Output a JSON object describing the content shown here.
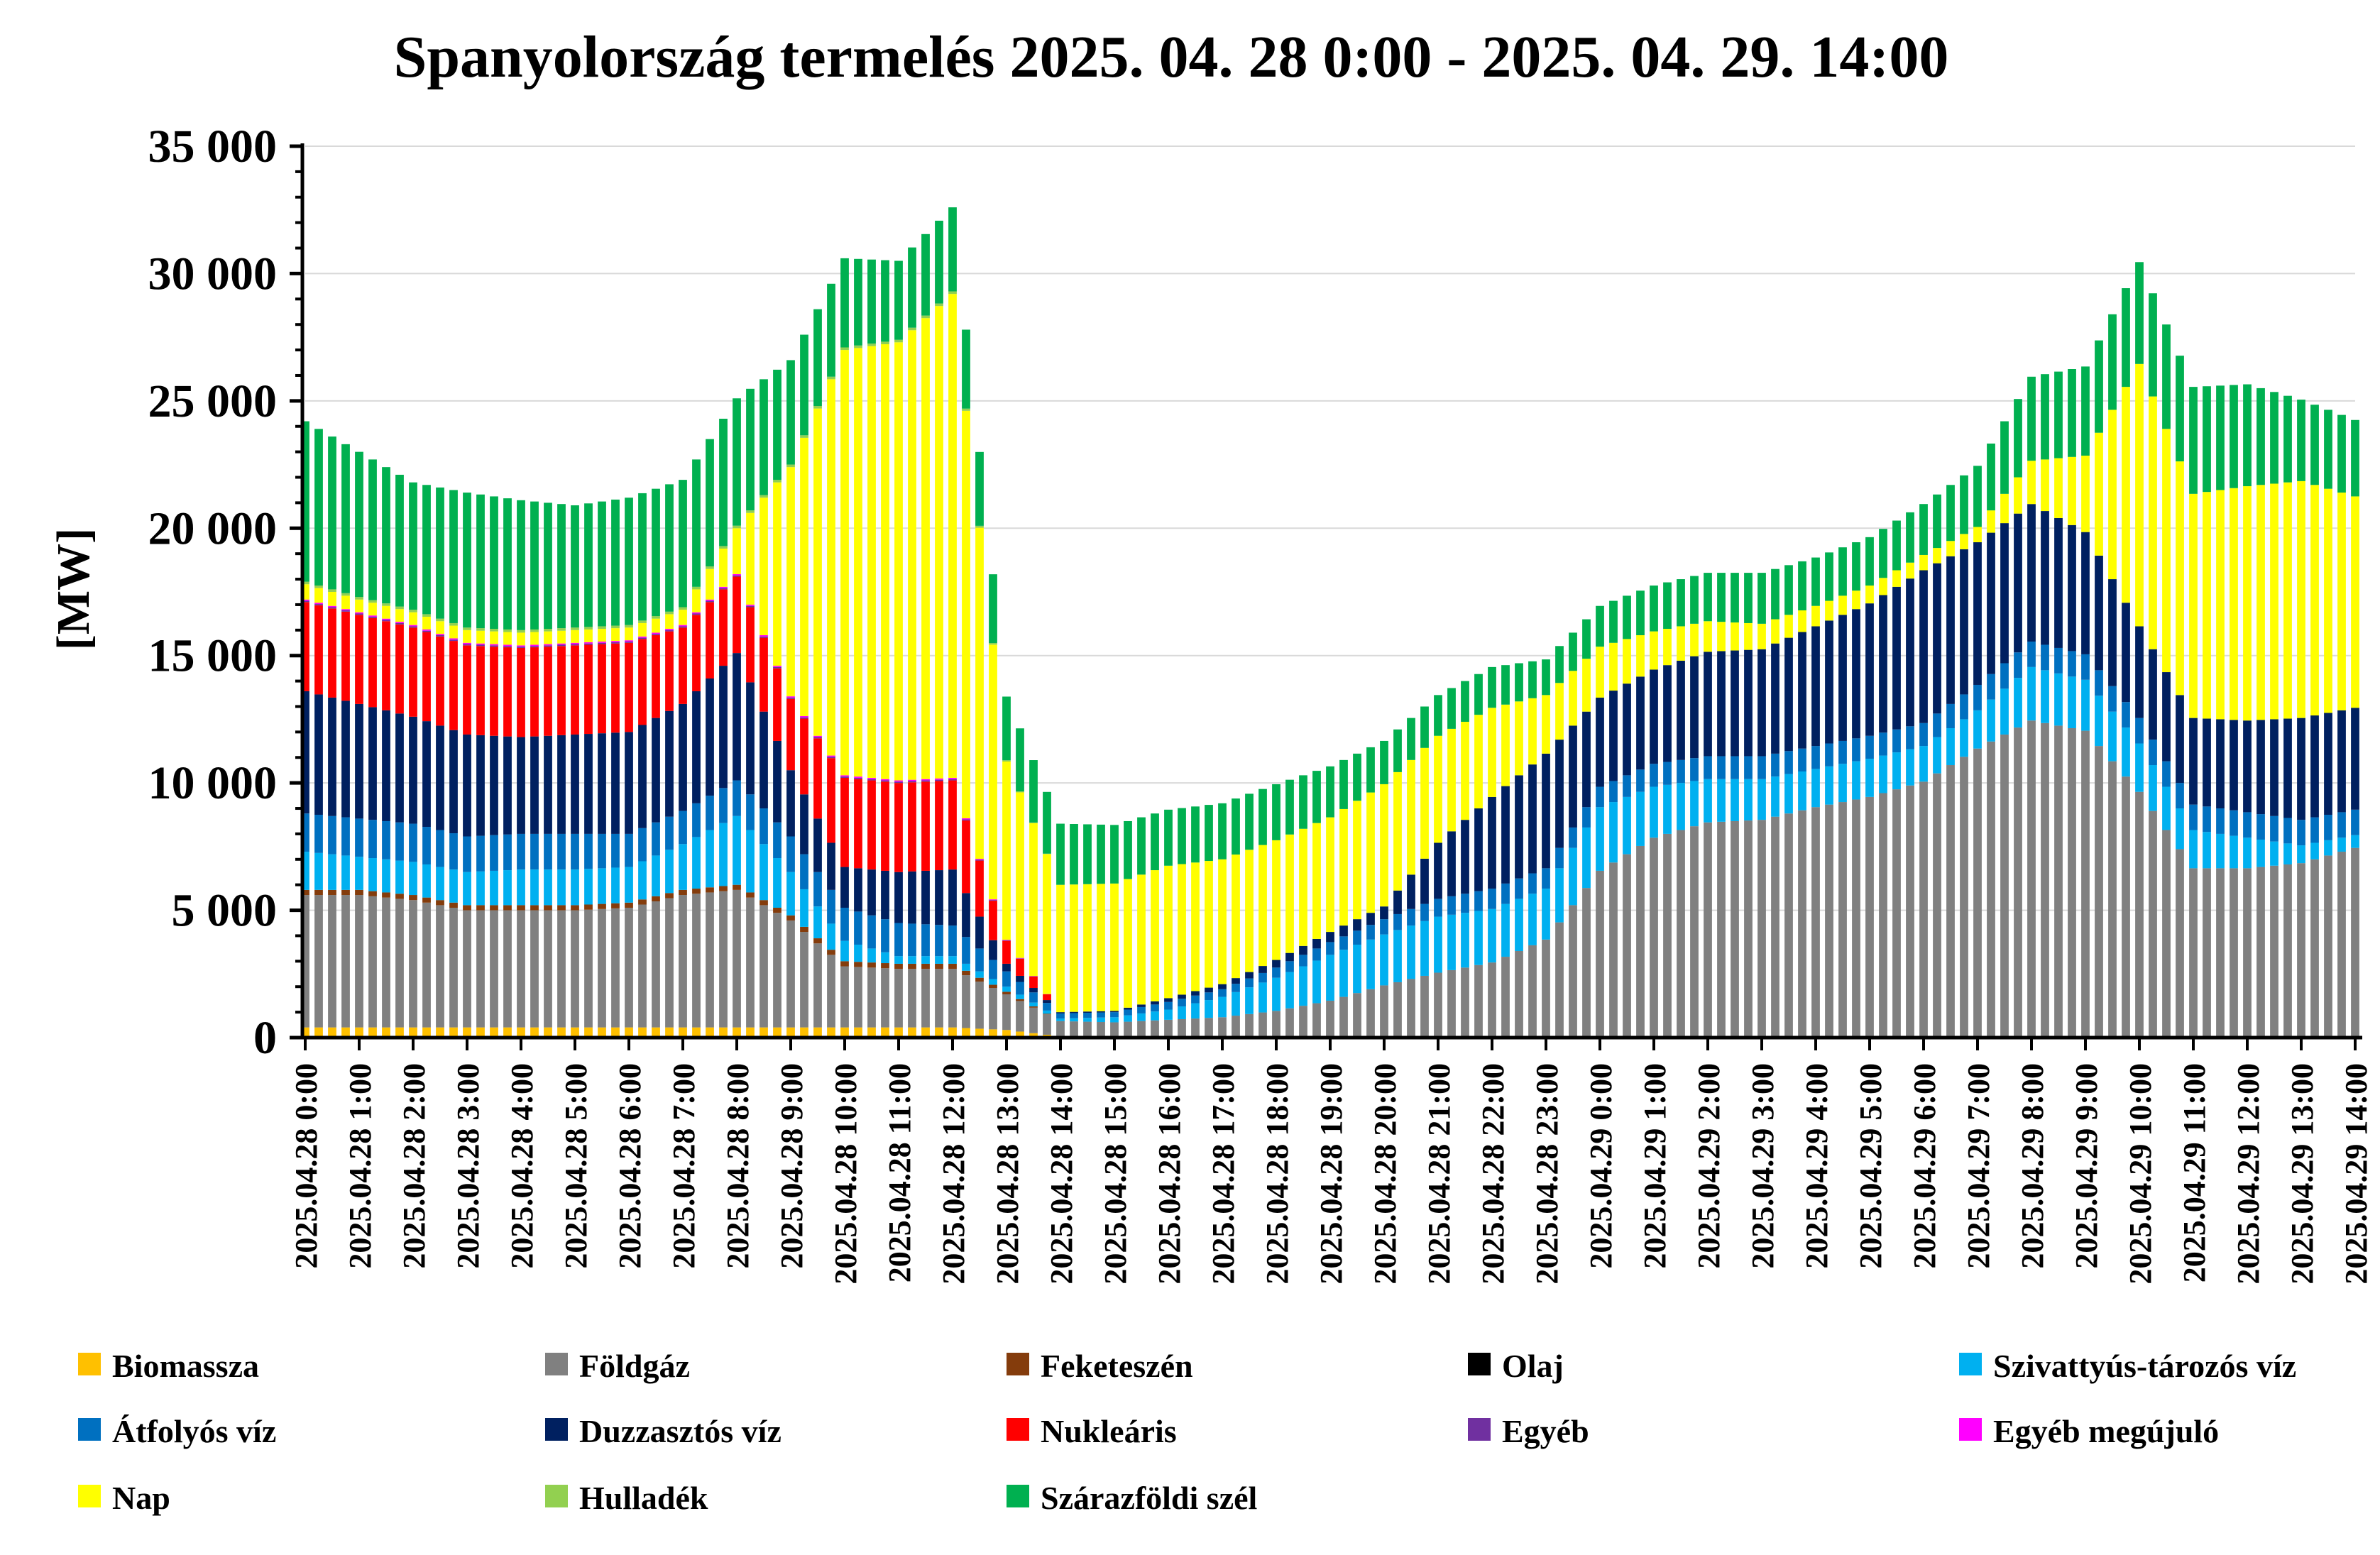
{
  "chart_data": {
    "type": "bar",
    "stacked": true,
    "title": "Spanyolország termelés 2025. 04. 28 0:00 - 2025. 04. 29. 14:00",
    "ylabel": "[MW]",
    "xlabel": "",
    "ylim": [
      0,
      35000
    ],
    "yticks": [
      0,
      5000,
      10000,
      15000,
      20000,
      25000,
      30000,
      35000
    ],
    "ytick_labels": [
      "0",
      "5 000",
      "10 000",
      "15 000",
      "20 000",
      "25 000",
      "30 000",
      "35 000"
    ],
    "grid": "horizontal",
    "legend_position": "bottom",
    "x_tick_labels": [
      "2025.04.28 0:00",
      "2025.04.28 1:00",
      "2025.04.28 2:00",
      "2025.04.28 3:00",
      "2025.04.28 4:00",
      "2025.04.28 5:00",
      "2025.04.28 6:00",
      "2025.04.28 7:00",
      "2025.04.28 8:00",
      "2025.04.28 9:00",
      "2025.04.28 10:00",
      "2025.04.28 11:00",
      "2025.04.28 12:00",
      "2025.04.28 13:00",
      "2025.04.28 14:00",
      "2025.04.28 15:00",
      "2025.04.28 16:00",
      "2025.04.28 17:00",
      "2025.04.28 18:00",
      "2025.04.28 19:00",
      "2025.04.28 20:00",
      "2025.04.28 21:00",
      "2025.04.28 22:00",
      "2025.04.28 23:00",
      "2025.04.29 0:00",
      "2025.04.29 1:00",
      "2025.04.29 2:00",
      "2025.04.29 3:00",
      "2025.04.29 4:00",
      "2025.04.29 5:00",
      "2025.04.29 6:00",
      "2025.04.29 7:00",
      "2025.04.29 8:00",
      "2025.04.29 9:00",
      "2025.04.29 10:00",
      "2025.04.29 11:00",
      "2025.04.29 12:00",
      "2025.04.29 13:00",
      "2025.04.29 14:00"
    ],
    "hours": [
      0,
      1,
      2,
      3,
      4,
      5,
      6,
      7,
      8,
      9,
      10,
      11,
      12,
      13,
      14,
      15,
      16,
      17,
      18,
      19,
      20,
      21,
      22,
      23,
      24,
      25,
      26,
      27,
      28,
      29,
      30,
      31,
      32,
      33,
      34,
      35,
      36,
      37,
      38
    ],
    "bars_per_hour": 4,
    "series": [
      {
        "name": "Biomassza",
        "color": "#FFC000",
        "values": [
          400,
          400,
          400,
          400,
          400,
          400,
          400,
          400,
          400,
          400,
          400,
          400,
          400,
          300,
          50,
          50,
          50,
          50,
          50,
          50,
          50,
          50,
          50,
          50,
          50,
          50,
          50,
          50,
          50,
          50,
          50,
          50,
          50,
          50,
          50,
          50,
          50,
          50,
          50
        ]
      },
      {
        "name": "Földgáz",
        "color": "#808080",
        "values": [
          5200,
          5200,
          5000,
          4600,
          4600,
          4600,
          4700,
          5200,
          5400,
          4200,
          2400,
          2300,
          2300,
          1400,
          600,
          550,
          650,
          750,
          1000,
          1400,
          2000,
          2500,
          2900,
          3800,
          6500,
          7800,
          8400,
          8500,
          9000,
          9400,
          10000,
          11300,
          12400,
          12000,
          9600,
          6600,
          6600,
          6800,
          7400
        ]
      },
      {
        "name": "Feketeszén",
        "color": "#843C0C",
        "values": [
          200,
          200,
          200,
          200,
          200,
          200,
          200,
          200,
          200,
          200,
          200,
          200,
          200,
          100,
          0,
          0,
          0,
          0,
          0,
          0,
          0,
          0,
          0,
          0,
          0,
          0,
          0,
          0,
          0,
          0,
          0,
          0,
          0,
          0,
          0,
          0,
          0,
          0,
          0
        ]
      },
      {
        "name": "Olaj",
        "color": "#000000",
        "values": [
          0,
          0,
          0,
          0,
          0,
          0,
          0,
          0,
          0,
          0,
          0,
          0,
          0,
          0,
          0,
          0,
          0,
          0,
          0,
          0,
          0,
          0,
          0,
          0,
          0,
          0,
          0,
          0,
          0,
          0,
          0,
          0,
          0,
          0,
          0,
          0,
          0,
          0,
          0
        ]
      },
      {
        "name": "Szivattyús-tározós víz",
        "color": "#00B0F0",
        "values": [
          1500,
          1300,
          1300,
          1300,
          1400,
          1400,
          1400,
          1800,
          2700,
          1700,
          800,
          300,
          300,
          200,
          100,
          200,
          400,
          800,
          1300,
          1800,
          2000,
          2200,
          2100,
          2000,
          2500,
          2000,
          1700,
          1600,
          1500,
          1500,
          1400,
          1500,
          2100,
          2000,
          1900,
          1500,
          1200,
          700,
          500
        ]
      },
      {
        "name": "Átfolyós víz",
        "color": "#0070C0",
        "values": [
          1500,
          1500,
          1500,
          1400,
          1400,
          1400,
          1300,
          1300,
          1400,
          1400,
          1300,
          1300,
          1200,
          600,
          200,
          200,
          300,
          300,
          400,
          500,
          600,
          700,
          800,
          800,
          800,
          900,
          900,
          900,
          900,
          900,
          900,
          1000,
          1000,
          1000,
          1000,
          1000,
          1000,
          1000,
          1000
        ]
      },
      {
        "name": "Duzzasztós víz",
        "color": "#002060",
        "values": [
          4800,
          4500,
          4200,
          4000,
          3800,
          3900,
          4000,
          4200,
          5000,
          2600,
          1600,
          2000,
          2200,
          300,
          50,
          50,
          150,
          200,
          300,
          400,
          500,
          2200,
          3600,
          4500,
          3500,
          3700,
          4100,
          4200,
          4700,
          5200,
          6000,
          5600,
          5400,
          4800,
          3600,
          3400,
          3600,
          4000,
          4000
        ]
      },
      {
        "name": "Nukleáris",
        "color": "#FF0000",
        "values": [
          3500,
          3500,
          3500,
          3500,
          3500,
          3500,
          3500,
          3000,
          3000,
          2800,
          3500,
          3500,
          3500,
          900,
          0,
          0,
          0,
          0,
          0,
          0,
          0,
          0,
          0,
          0,
          0,
          0,
          0,
          0,
          0,
          0,
          0,
          0,
          0,
          0,
          0,
          0,
          0,
          0,
          0
        ]
      },
      {
        "name": "Egyéb",
        "color": "#7030A0",
        "values": [
          50,
          50,
          50,
          50,
          50,
          50,
          50,
          50,
          50,
          50,
          50,
          50,
          50,
          20,
          0,
          0,
          0,
          0,
          0,
          0,
          0,
          0,
          0,
          0,
          0,
          0,
          0,
          0,
          0,
          0,
          0,
          0,
          0,
          0,
          0,
          0,
          0,
          0,
          0
        ]
      },
      {
        "name": "Egyéb megújuló",
        "color": "#FF00FF",
        "values": [
          50,
          50,
          50,
          50,
          50,
          50,
          50,
          50,
          50,
          50,
          50,
          50,
          50,
          20,
          0,
          0,
          0,
          0,
          0,
          0,
          0,
          0,
          0,
          0,
          0,
          0,
          0,
          0,
          0,
          0,
          0,
          0,
          0,
          0,
          0,
          0,
          0,
          0,
          0
        ]
      },
      {
        "name": "Nap",
        "color": "#FFFF00",
        "values": [
          600,
          500,
          500,
          500,
          500,
          500,
          500,
          600,
          1800,
          9000,
          16700,
          17200,
          19000,
          7000,
          5000,
          5000,
          5200,
          4900,
          4700,
          4500,
          4800,
          4200,
          3500,
          2300,
          2000,
          1500,
          1200,
          1000,
          800,
          700,
          600,
          600,
          1700,
          3000,
          10300,
          8800,
          9200,
          9300,
          8300
        ]
      },
      {
        "name": "Hulladék",
        "color": "#92D050",
        "values": [
          100,
          100,
          100,
          100,
          100,
          100,
          100,
          100,
          100,
          100,
          100,
          100,
          100,
          50,
          0,
          0,
          0,
          0,
          0,
          0,
          0,
          0,
          0,
          0,
          0,
          0,
          0,
          0,
          0,
          0,
          0,
          0,
          0,
          0,
          0,
          0,
          0,
          0,
          0
        ]
      },
      {
        "name": "Szárazföldi szél",
        "color": "#00B050",
        "values": [
          6300,
          5700,
          5000,
          5300,
          5100,
          4800,
          5000,
          5000,
          5000,
          4100,
          3500,
          3100,
          3300,
          2500,
          2400,
          2300,
          2200,
          2200,
          2200,
          2000,
          1700,
          1600,
          1600,
          1400,
          1600,
          1800,
          1900,
          2000,
          1900,
          1900,
          2000,
          2400,
          3300,
          3500,
          4000,
          4200,
          4000,
          3200,
          3000
        ]
      }
    ]
  }
}
